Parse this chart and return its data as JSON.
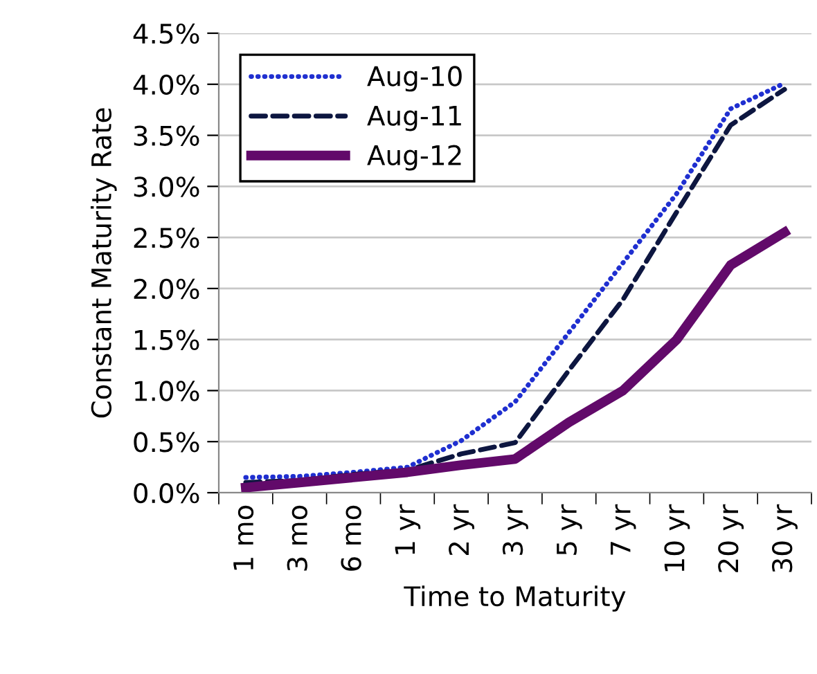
{
  "chart_data": {
    "type": "line",
    "xlabel": "Time to Maturity",
    "ylabel": "Constant Maturity Rate",
    "categories": [
      "1 mo",
      "3 mo",
      "6 mo",
      "1 yr",
      "2 yr",
      "3 yr",
      "5 yr",
      "7 yr",
      "10 yr",
      "20 yr",
      "30 yr"
    ],
    "series": [
      {
        "name": "Aug-10",
        "color": "#1f2fd0",
        "line_style": "dotted",
        "values": [
          0.15,
          0.16,
          0.2,
          0.25,
          0.51,
          0.89,
          1.57,
          2.25,
          2.93,
          3.76,
          4.01
        ]
      },
      {
        "name": "Aug-11",
        "color": "#0d1640",
        "line_style": "dashed",
        "values": [
          0.1,
          0.12,
          0.18,
          0.22,
          0.38,
          0.49,
          1.2,
          1.89,
          2.75,
          3.6,
          3.95
        ]
      },
      {
        "name": "Aug-12",
        "color": "#620a6a",
        "line_style": "solid",
        "values": [
          0.05,
          0.1,
          0.15,
          0.2,
          0.27,
          0.33,
          0.69,
          1.0,
          1.5,
          2.23,
          2.55
        ]
      }
    ],
    "ylim": [
      0,
      4.5
    ],
    "yticks": [
      {
        "value": 0,
        "label": "0.0%"
      },
      {
        "value": 0.5,
        "label": "0.5%"
      },
      {
        "value": 1,
        "label": "1.0%"
      },
      {
        "value": 1.5,
        "label": "1.5%"
      },
      {
        "value": 2,
        "label": "2.0%"
      },
      {
        "value": 2.5,
        "label": "2.5%"
      },
      {
        "value": 3,
        "label": "3.0%"
      },
      {
        "value": 3.5,
        "label": "3.5%"
      },
      {
        "value": 4,
        "label": "4.0%"
      },
      {
        "value": 4.5,
        "label": "4.5%"
      }
    ],
    "grid": "y",
    "legend": "top left",
    "marker": "none"
  }
}
